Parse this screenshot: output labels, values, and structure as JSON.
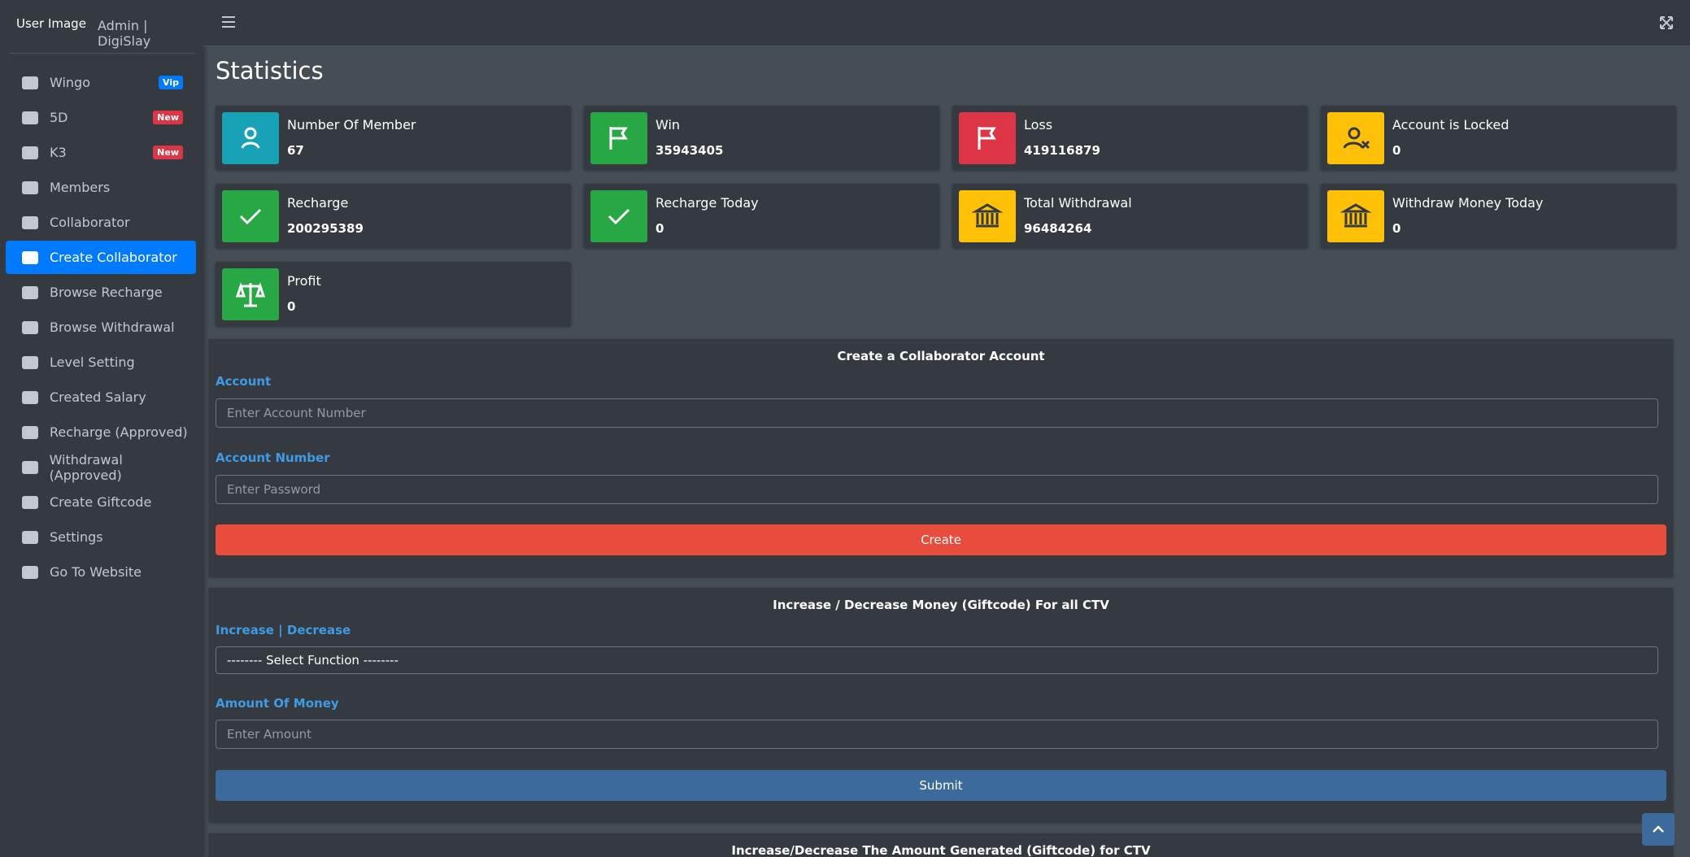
{
  "sidebar": {
    "brand_image_alt": "User Image",
    "brand_text": "Admin | DigiSlay",
    "menu": [
      {
        "label": "Wingo",
        "badge": "Vip"
      },
      {
        "label": "5D",
        "badge": "New"
      },
      {
        "label": "K3",
        "badge": "New"
      },
      {
        "label": "Members"
      },
      {
        "label": "Collaborator"
      },
      {
        "label": "Create Collaborator"
      },
      {
        "label": "Browse Recharge"
      },
      {
        "label": "Browse Withdrawal"
      },
      {
        "label": "Level Setting"
      },
      {
        "label": "Created Salary"
      },
      {
        "label": "Recharge (Approved)"
      },
      {
        "label": "Withdrawal (Approved)"
      },
      {
        "label": "Create Giftcode"
      },
      {
        "label": "Settings"
      },
      {
        "label": "Go To Website"
      }
    ]
  },
  "page_title": "Statistics",
  "stats": [
    {
      "label": "Number Of Member",
      "value": "67"
    },
    {
      "label": "Win",
      "value": "35943405"
    },
    {
      "label": "Loss",
      "value": "419116879"
    },
    {
      "label": "Account is Locked",
      "value": "0"
    },
    {
      "label": "Recharge",
      "value": "200295389"
    },
    {
      "label": "Recharge Today",
      "value": "0"
    },
    {
      "label": "Total Withdrawal",
      "value": "96484264"
    },
    {
      "label": "Withdraw Money Today",
      "value": "0"
    },
    {
      "label": "Profit",
      "value": "0"
    }
  ],
  "form1": {
    "title": "Create a Collaborator Account",
    "label1": "Account",
    "placeholder1": "Enter Account Number",
    "label2": "Account Number",
    "placeholder2": "Enter Password",
    "button": "Create"
  },
  "form2": {
    "title": "Increase / Decrease Money (Giftcode) For all CTV",
    "label1": "Increase | Decrease",
    "select": "-------- Select Function --------",
    "label2": "Amount Of Money",
    "placeholder2": "Enter Amount",
    "button": "Submit"
  },
  "form3": {
    "title": "Increase/Decrease The Amount Generated (Giftcode) for CTV"
  }
}
